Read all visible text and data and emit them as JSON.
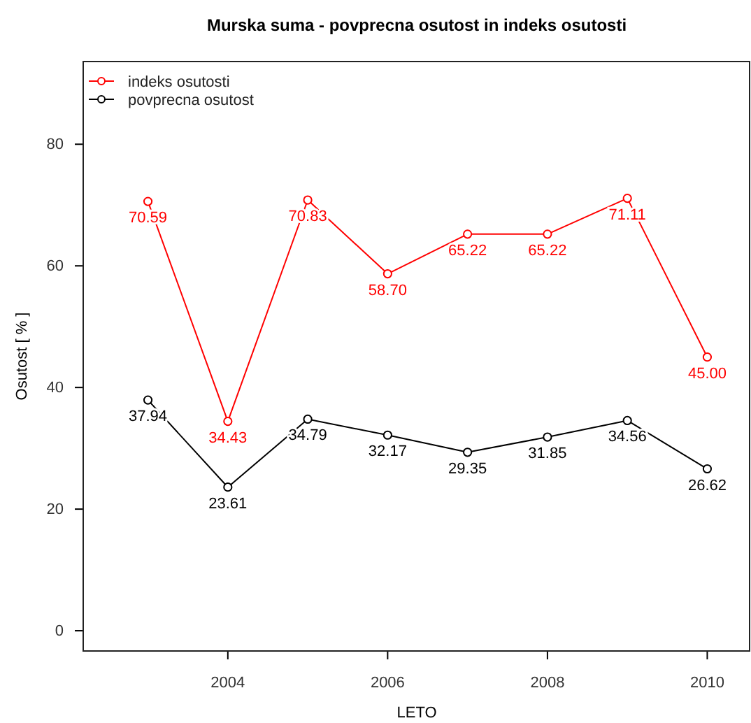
{
  "chart_data": {
    "type": "line",
    "title": "Murska suma - povprecna osutost in indeks osutosti",
    "xlabel": "LETO",
    "ylabel": "Osutost [ % ]",
    "x": [
      2003,
      2004,
      2005,
      2006,
      2007,
      2008,
      2009,
      2010
    ],
    "series": [
      {
        "name": "indeks osutosti",
        "color": "#ff0000",
        "values": [
          70.59,
          34.43,
          70.83,
          58.7,
          65.22,
          65.22,
          71.11,
          45.0
        ],
        "value_labels": [
          "70.59",
          "34.43",
          "70.83",
          "58.70",
          "65.22",
          "65.22",
          "71.11",
          "45.00"
        ]
      },
      {
        "name": "povprecna osutost",
        "color": "#000000",
        "values": [
          37.94,
          23.61,
          34.79,
          32.17,
          29.35,
          31.85,
          34.56,
          26.62
        ],
        "value_labels": [
          "37.94",
          "23.61",
          "34.79",
          "32.17",
          "29.35",
          "31.85",
          "34.56",
          "26.62"
        ]
      }
    ],
    "xlim": [
      2002.19,
      2010.53
    ],
    "ylim": [
      -3.33,
      93.6
    ],
    "xticks": [
      2004,
      2006,
      2008,
      2010
    ],
    "yticks": [
      0,
      20,
      40,
      60,
      80
    ],
    "marker": "circle",
    "legend": "top left",
    "grid": false
  }
}
